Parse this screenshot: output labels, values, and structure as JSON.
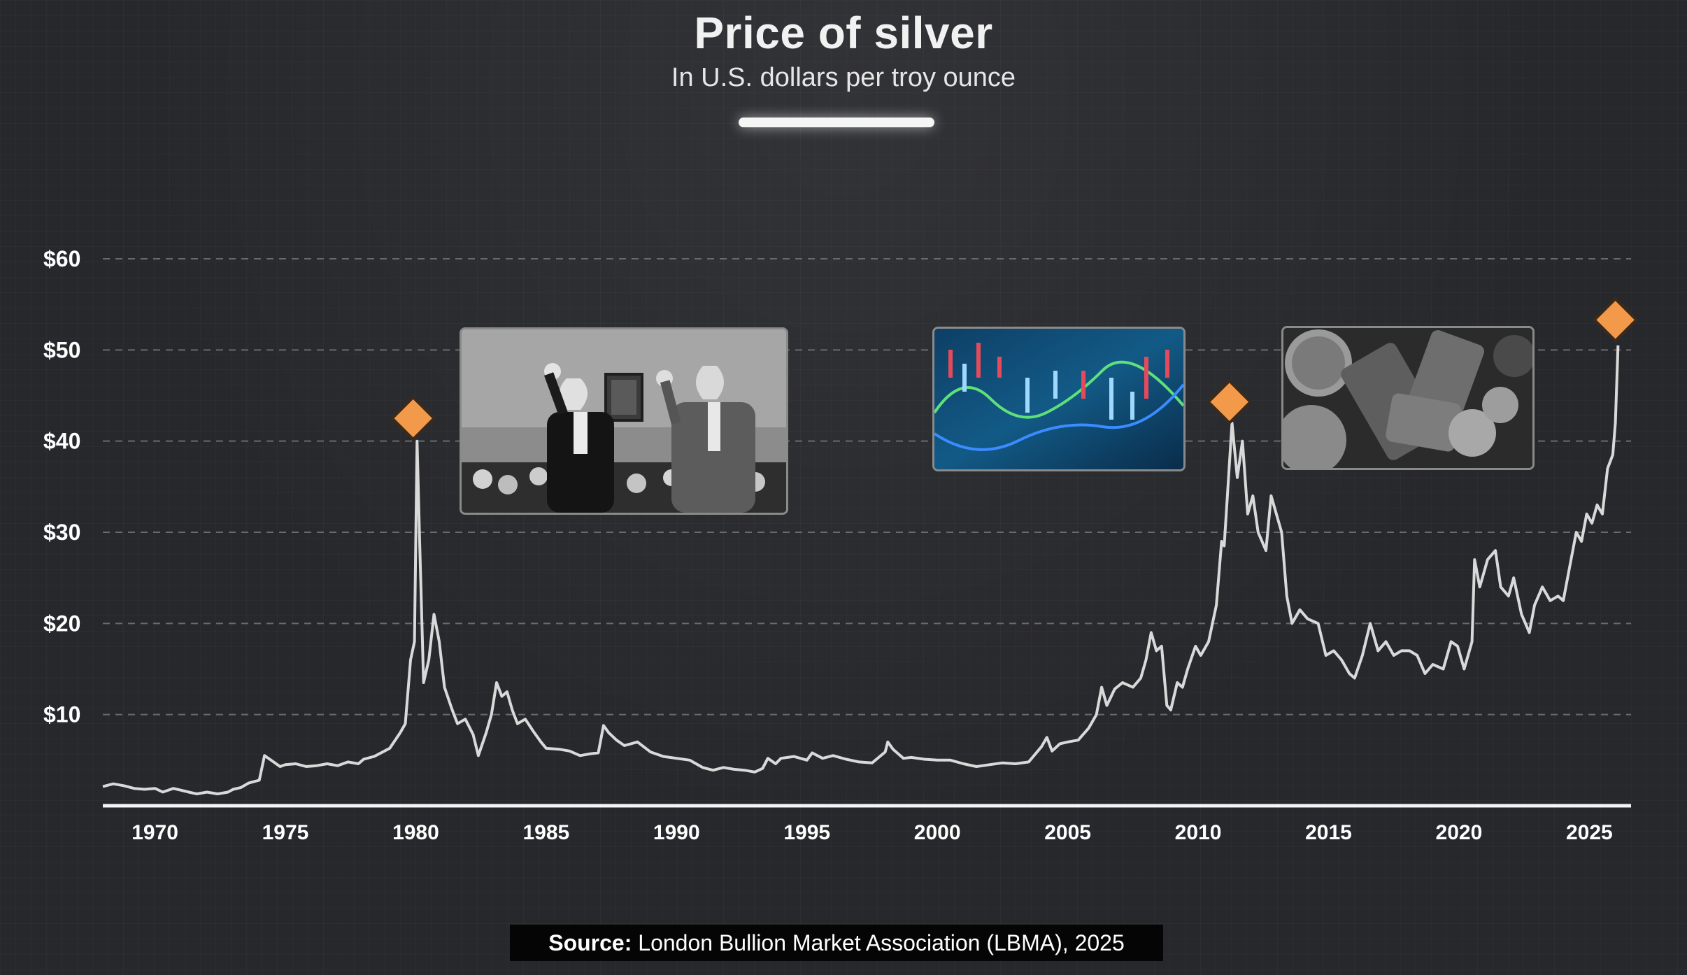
{
  "header": {
    "title": "Price of silver",
    "subtitle": "In U.S. dollars per troy ounce"
  },
  "source": {
    "label": "Source:",
    "text": "London Bullion Market Association (LBMA), 2025"
  },
  "colors": {
    "background": "#27282c",
    "line": "#d9d9d9",
    "marker": "#f29a4a",
    "grid": "#6a6a6a"
  },
  "photos": [
    {
      "name": "hunt-brothers-hearing-photo",
      "description_icon": "photo-icon"
    },
    {
      "name": "market-candlestick-chart-photo",
      "description_icon": "photo-icon"
    },
    {
      "name": "silver-bars-coins-photo",
      "description_icon": "photo-icon"
    }
  ],
  "chart_data": {
    "type": "line",
    "title": "Price of silver",
    "subtitle": "In U.S. dollars per troy ounce",
    "xlabel": "",
    "ylabel": "",
    "xlim": [
      1968,
      2026.6
    ],
    "ylim": [
      0,
      60
    ],
    "yticks": [
      10,
      20,
      30,
      40,
      50,
      60
    ],
    "ytick_labels": [
      "$10",
      "$20",
      "$30",
      "$40",
      "$50",
      "$60"
    ],
    "xticks": [
      1970,
      1975,
      1980,
      1985,
      1990,
      1995,
      2000,
      2005,
      2010,
      2015,
      2020,
      2025
    ],
    "xtick_labels": [
      "1970",
      "1975",
      "1980",
      "1985",
      "1990",
      "1995",
      "2000",
      "2005",
      "2010",
      "2015",
      "2020",
      "2025"
    ],
    "grid": "horizontal-dashed",
    "series": [
      {
        "points": [
          [
            1968.0,
            2.1
          ],
          [
            1968.4,
            2.4
          ],
          [
            1968.8,
            2.2
          ],
          [
            1969.2,
            1.9
          ],
          [
            1969.6,
            1.8
          ],
          [
            1970.0,
            1.9
          ],
          [
            1970.3,
            1.5
          ],
          [
            1970.7,
            1.9
          ],
          [
            1971.0,
            1.7
          ],
          [
            1971.3,
            1.5
          ],
          [
            1971.6,
            1.3
          ],
          [
            1972.0,
            1.5
          ],
          [
            1972.4,
            1.3
          ],
          [
            1972.8,
            1.5
          ],
          [
            1973.0,
            1.8
          ],
          [
            1973.3,
            2.0
          ],
          [
            1973.6,
            2.5
          ],
          [
            1974.0,
            2.8
          ],
          [
            1974.2,
            5.5
          ],
          [
            1974.5,
            4.9
          ],
          [
            1974.8,
            4.3
          ],
          [
            1975.0,
            4.5
          ],
          [
            1975.4,
            4.6
          ],
          [
            1975.8,
            4.3
          ],
          [
            1976.2,
            4.4
          ],
          [
            1976.6,
            4.6
          ],
          [
            1977.0,
            4.4
          ],
          [
            1977.4,
            4.8
          ],
          [
            1977.8,
            4.6
          ],
          [
            1978.0,
            5.1
          ],
          [
            1978.4,
            5.4
          ],
          [
            1978.8,
            6.0
          ],
          [
            1979.0,
            6.3
          ],
          [
            1979.4,
            8.0
          ],
          [
            1979.6,
            9.0
          ],
          [
            1979.8,
            16.0
          ],
          [
            1979.95,
            18.0
          ],
          [
            1980.05,
            40.0
          ],
          [
            1980.15,
            29.0
          ],
          [
            1980.3,
            13.5
          ],
          [
            1980.5,
            16.0
          ],
          [
            1980.7,
            21.0
          ],
          [
            1980.9,
            18.0
          ],
          [
            1981.1,
            13.0
          ],
          [
            1981.4,
            10.5
          ],
          [
            1981.6,
            9.0
          ],
          [
            1981.9,
            9.5
          ],
          [
            1982.2,
            7.8
          ],
          [
            1982.4,
            5.5
          ],
          [
            1982.7,
            8.0
          ],
          [
            1982.9,
            10.0
          ],
          [
            1983.1,
            13.5
          ],
          [
            1983.3,
            12.0
          ],
          [
            1983.5,
            12.5
          ],
          [
            1983.7,
            10.5
          ],
          [
            1983.9,
            9.0
          ],
          [
            1984.2,
            9.5
          ],
          [
            1984.5,
            8.2
          ],
          [
            1984.8,
            7.0
          ],
          [
            1985.0,
            6.3
          ],
          [
            1985.5,
            6.2
          ],
          [
            1985.9,
            6.0
          ],
          [
            1986.3,
            5.5
          ],
          [
            1986.7,
            5.7
          ],
          [
            1987.0,
            5.8
          ],
          [
            1987.2,
            8.8
          ],
          [
            1987.4,
            8.0
          ],
          [
            1987.7,
            7.2
          ],
          [
            1988.0,
            6.6
          ],
          [
            1988.5,
            7.0
          ],
          [
            1989.0,
            5.9
          ],
          [
            1989.5,
            5.4
          ],
          [
            1990.0,
            5.2
          ],
          [
            1990.5,
            5.0
          ],
          [
            1991.0,
            4.2
          ],
          [
            1991.4,
            3.9
          ],
          [
            1991.8,
            4.2
          ],
          [
            1992.2,
            4.0
          ],
          [
            1992.6,
            3.9
          ],
          [
            1993.0,
            3.7
          ],
          [
            1993.3,
            4.1
          ],
          [
            1993.5,
            5.2
          ],
          [
            1993.8,
            4.6
          ],
          [
            1994.0,
            5.2
          ],
          [
            1994.5,
            5.4
          ],
          [
            1995.0,
            5.0
          ],
          [
            1995.2,
            5.8
          ],
          [
            1995.6,
            5.2
          ],
          [
            1996.0,
            5.5
          ],
          [
            1996.5,
            5.1
          ],
          [
            1997.0,
            4.8
          ],
          [
            1997.5,
            4.7
          ],
          [
            1998.0,
            5.9
          ],
          [
            1998.1,
            7.0
          ],
          [
            1998.3,
            6.2
          ],
          [
            1998.7,
            5.2
          ],
          [
            1999.0,
            5.3
          ],
          [
            1999.5,
            5.1
          ],
          [
            2000.0,
            5.0
          ],
          [
            2000.5,
            5.0
          ],
          [
            2001.0,
            4.6
          ],
          [
            2001.5,
            4.3
          ],
          [
            2002.0,
            4.5
          ],
          [
            2002.5,
            4.7
          ],
          [
            2003.0,
            4.6
          ],
          [
            2003.5,
            4.8
          ],
          [
            2004.0,
            6.5
          ],
          [
            2004.2,
            7.5
          ],
          [
            2004.4,
            6.0
          ],
          [
            2004.7,
            6.8
          ],
          [
            2005.0,
            7.0
          ],
          [
            2005.4,
            7.2
          ],
          [
            2005.8,
            8.5
          ],
          [
            2006.1,
            10.0
          ],
          [
            2006.3,
            13.0
          ],
          [
            2006.5,
            11.0
          ],
          [
            2006.8,
            12.8
          ],
          [
            2007.1,
            13.5
          ],
          [
            2007.5,
            13.0
          ],
          [
            2007.8,
            14.0
          ],
          [
            2008.0,
            16.0
          ],
          [
            2008.2,
            19.0
          ],
          [
            2008.4,
            17.0
          ],
          [
            2008.6,
            17.5
          ],
          [
            2008.8,
            11.0
          ],
          [
            2008.95,
            10.5
          ],
          [
            2009.2,
            13.5
          ],
          [
            2009.4,
            13.0
          ],
          [
            2009.6,
            15.0
          ],
          [
            2009.9,
            17.5
          ],
          [
            2010.1,
            16.5
          ],
          [
            2010.4,
            18.0
          ],
          [
            2010.7,
            22.0
          ],
          [
            2010.9,
            29.0
          ],
          [
            2011.0,
            28.5
          ],
          [
            2011.3,
            42.0
          ],
          [
            2011.5,
            36.0
          ],
          [
            2011.7,
            40.0
          ],
          [
            2011.9,
            32.0
          ],
          [
            2012.1,
            34.0
          ],
          [
            2012.3,
            30.0
          ],
          [
            2012.6,
            28.0
          ],
          [
            2012.8,
            34.0
          ],
          [
            2013.0,
            32.0
          ],
          [
            2013.2,
            30.0
          ],
          [
            2013.4,
            23.0
          ],
          [
            2013.6,
            20.0
          ],
          [
            2013.9,
            21.5
          ],
          [
            2014.2,
            20.5
          ],
          [
            2014.6,
            20.0
          ],
          [
            2014.9,
            16.5
          ],
          [
            2015.2,
            17.0
          ],
          [
            2015.5,
            16.0
          ],
          [
            2015.8,
            14.5
          ],
          [
            2016.0,
            14.0
          ],
          [
            2016.3,
            16.5
          ],
          [
            2016.6,
            20.0
          ],
          [
            2016.9,
            17.0
          ],
          [
            2017.2,
            18.0
          ],
          [
            2017.5,
            16.5
          ],
          [
            2017.8,
            17.0
          ],
          [
            2018.1,
            17.0
          ],
          [
            2018.4,
            16.5
          ],
          [
            2018.7,
            14.5
          ],
          [
            2019.0,
            15.5
          ],
          [
            2019.4,
            15.0
          ],
          [
            2019.7,
            18.0
          ],
          [
            2019.95,
            17.5
          ],
          [
            2020.2,
            15.0
          ],
          [
            2020.5,
            18.0
          ],
          [
            2020.6,
            27.0
          ],
          [
            2020.8,
            24.0
          ],
          [
            2021.1,
            27.0
          ],
          [
            2021.4,
            28.0
          ],
          [
            2021.6,
            24.0
          ],
          [
            2021.9,
            23.0
          ],
          [
            2022.1,
            25.0
          ],
          [
            2022.4,
            21.0
          ],
          [
            2022.7,
            19.0
          ],
          [
            2022.9,
            22.0
          ],
          [
            2023.2,
            24.0
          ],
          [
            2023.5,
            22.5
          ],
          [
            2023.8,
            23.0
          ],
          [
            2024.0,
            22.5
          ],
          [
            2024.3,
            27.0
          ],
          [
            2024.5,
            30.0
          ],
          [
            2024.7,
            29.0
          ],
          [
            2024.9,
            32.0
          ],
          [
            2025.1,
            31.0
          ],
          [
            2025.3,
            33.0
          ],
          [
            2025.5,
            32.0
          ],
          [
            2025.7,
            37.0
          ],
          [
            2025.9,
            38.5
          ],
          [
            2026.0,
            42.0
          ],
          [
            2026.1,
            50.5
          ]
        ]
      }
    ],
    "markers": [
      {
        "x": 1979.9,
        "y": 42.5
      },
      {
        "x": 2011.2,
        "y": 44.3
      },
      {
        "x": 2026.0,
        "y": 53.3
      }
    ]
  }
}
